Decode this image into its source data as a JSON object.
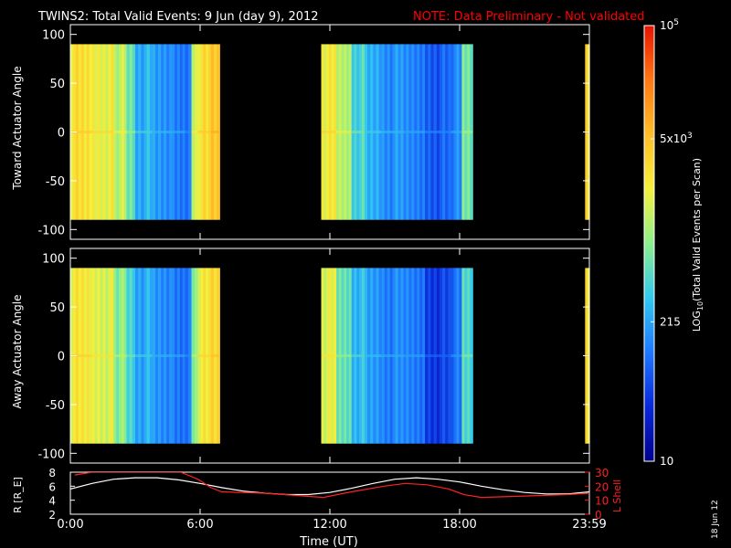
{
  "header": {
    "title": "TWINS2: Total Valid Events:  9 Jun (day   9), 2012",
    "note": "NOTE: Data Preliminary - Not validated"
  },
  "footer": {
    "date_stamp": "18 Jun 12"
  },
  "colors": {
    "background": "#000000",
    "axis": "#ffffff",
    "note": "#ff0000",
    "r_line": "#ffffff",
    "l_line": "#ff2020",
    "colorscale": [
      "#00008c",
      "#0a28d8",
      "#1e78ff",
      "#32c8f0",
      "#8cf08c",
      "#f5f03c",
      "#ffbe28",
      "#ff7814",
      "#e61400"
    ]
  },
  "chart_data": [
    {
      "id": "toward",
      "type": "heatmap",
      "ylabel": "Toward Actuator Angle",
      "ylim": [
        -110,
        110
      ],
      "yticks": [
        "100",
        "50",
        "0",
        "-50",
        "-100"
      ],
      "xlim": [
        0,
        24
      ],
      "angle_range": [
        -90,
        90
      ],
      "columns": [
        {
          "x0": 0.0,
          "x1": 1.0,
          "level": 0.66
        },
        {
          "x0": 1.0,
          "x1": 2.0,
          "level": 0.62
        },
        {
          "x0": 2.0,
          "x1": 2.6,
          "level": 0.56
        },
        {
          "x0": 2.6,
          "x1": 3.0,
          "level": 0.45
        },
        {
          "x0": 3.0,
          "x1": 3.8,
          "level": 0.34
        },
        {
          "x0": 3.8,
          "x1": 4.7,
          "level": 0.29
        },
        {
          "x0": 4.7,
          "x1": 5.3,
          "level": 0.27
        },
        {
          "x0": 5.3,
          "x1": 5.6,
          "level": 0.22
        },
        {
          "x0": 5.6,
          "x1": 5.9,
          "level": 0.58
        },
        {
          "x0": 5.9,
          "x1": 6.5,
          "level": 0.66
        },
        {
          "x0": 6.5,
          "x1": 6.9,
          "level": 0.72
        },
        {
          "x0": 11.6,
          "x1": 12.3,
          "level": 0.63
        },
        {
          "x0": 12.3,
          "x1": 13.0,
          "level": 0.55
        },
        {
          "x0": 13.0,
          "x1": 13.6,
          "level": 0.41
        },
        {
          "x0": 13.6,
          "x1": 14.4,
          "level": 0.33
        },
        {
          "x0": 14.4,
          "x1": 15.4,
          "level": 0.29
        },
        {
          "x0": 15.4,
          "x1": 16.4,
          "level": 0.26
        },
        {
          "x0": 16.4,
          "x1": 17.6,
          "level": 0.21
        },
        {
          "x0": 17.6,
          "x1": 18.1,
          "level": 0.27
        },
        {
          "x0": 18.1,
          "x1": 18.6,
          "level": 0.47
        },
        {
          "x0": 23.8,
          "x1": 24.0,
          "level": 0.7
        }
      ]
    },
    {
      "id": "away",
      "type": "heatmap",
      "ylabel": "Away Actuator Angle",
      "ylim": [
        -110,
        110
      ],
      "yticks": [
        "100",
        "50",
        "0",
        "-50",
        "-100"
      ],
      "xlim": [
        0,
        24
      ],
      "angle_range": [
        -90,
        90
      ],
      "columns": [
        {
          "x0": 0.0,
          "x1": 1.0,
          "level": 0.64
        },
        {
          "x0": 1.0,
          "x1": 2.0,
          "level": 0.6
        },
        {
          "x0": 2.0,
          "x1": 2.6,
          "level": 0.5
        },
        {
          "x0": 2.6,
          "x1": 3.0,
          "level": 0.4
        },
        {
          "x0": 3.0,
          "x1": 3.8,
          "level": 0.33
        },
        {
          "x0": 3.8,
          "x1": 4.7,
          "level": 0.28
        },
        {
          "x0": 4.7,
          "x1": 5.3,
          "level": 0.26
        },
        {
          "x0": 5.3,
          "x1": 5.6,
          "level": 0.22
        },
        {
          "x0": 5.6,
          "x1": 5.9,
          "level": 0.5
        },
        {
          "x0": 5.9,
          "x1": 6.5,
          "level": 0.63
        },
        {
          "x0": 6.5,
          "x1": 6.9,
          "level": 0.68
        },
        {
          "x0": 11.6,
          "x1": 12.3,
          "level": 0.6
        },
        {
          "x0": 12.3,
          "x1": 13.0,
          "level": 0.45
        },
        {
          "x0": 13.0,
          "x1": 13.6,
          "level": 0.36
        },
        {
          "x0": 13.6,
          "x1": 14.4,
          "level": 0.3
        },
        {
          "x0": 14.4,
          "x1": 15.4,
          "level": 0.27
        },
        {
          "x0": 15.4,
          "x1": 16.4,
          "level": 0.25
        },
        {
          "x0": 16.4,
          "x1": 17.6,
          "level": 0.16
        },
        {
          "x0": 17.6,
          "x1": 18.1,
          "level": 0.24
        },
        {
          "x0": 18.1,
          "x1": 18.6,
          "level": 0.42
        },
        {
          "x0": 23.8,
          "x1": 24.0,
          "level": 0.68
        }
      ]
    },
    {
      "id": "orbit",
      "type": "line",
      "xlabel": "Time (UT)",
      "xlim": [
        0,
        24
      ],
      "xticks": [
        {
          "x": 0,
          "label": "0:00"
        },
        {
          "x": 6,
          "label": "6:00"
        },
        {
          "x": 12,
          "label": "12:00"
        },
        {
          "x": 18,
          "label": "18:00"
        },
        {
          "x": 24,
          "label": "23:59"
        }
      ],
      "left_axis": {
        "ylabel": "R [R_E]",
        "ylim": [
          2,
          8
        ],
        "yticks": [
          "8",
          "6",
          "4",
          "2"
        ]
      },
      "right_axis": {
        "ylabel": "L Shell",
        "ylim": [
          0,
          30
        ],
        "yticks": [
          "30",
          "20",
          "10",
          "0"
        ]
      },
      "series": [
        {
          "name": "R",
          "axis": "left",
          "x": [
            0,
            1,
            2,
            3,
            4,
            5,
            6,
            7,
            8,
            9,
            10,
            11,
            12,
            13,
            14,
            15,
            16,
            17,
            18,
            19,
            20,
            21,
            22,
            23,
            24
          ],
          "y": [
            5.6,
            6.4,
            7.0,
            7.2,
            7.2,
            6.9,
            6.4,
            5.8,
            5.3,
            5.0,
            4.8,
            4.8,
            5.1,
            5.7,
            6.4,
            7.0,
            7.2,
            7.0,
            6.6,
            6.0,
            5.5,
            5.1,
            4.9,
            4.9,
            5.2
          ]
        },
        {
          "name": "L Shell",
          "axis": "right",
          "x": [
            0.2,
            1.0,
            5.1,
            5.9,
            6.5,
            7.0,
            9.0,
            11.7,
            13.0,
            14.5,
            15.5,
            16.5,
            17.5,
            18.2,
            19.0,
            21.0,
            23.0,
            24.0
          ],
          "y": [
            28,
            30,
            30,
            25,
            19,
            16,
            15,
            12,
            16,
            20,
            22,
            21,
            18,
            14,
            12,
            13,
            14,
            15
          ]
        }
      ]
    }
  ],
  "colorbar": {
    "label_prefix": "LOG",
    "label_sub": "10",
    "label_rest": "(Total Valid Events per Scan)",
    "ticks": [
      {
        "base": "10",
        "exp": "5",
        "frac": 1.0
      },
      {
        "base": "5x10",
        "exp": "3",
        "frac": 0.74
      },
      {
        "base": "215",
        "exp": "",
        "frac": 0.32
      },
      {
        "base": "10",
        "exp": "",
        "frac": 0.0
      }
    ]
  }
}
